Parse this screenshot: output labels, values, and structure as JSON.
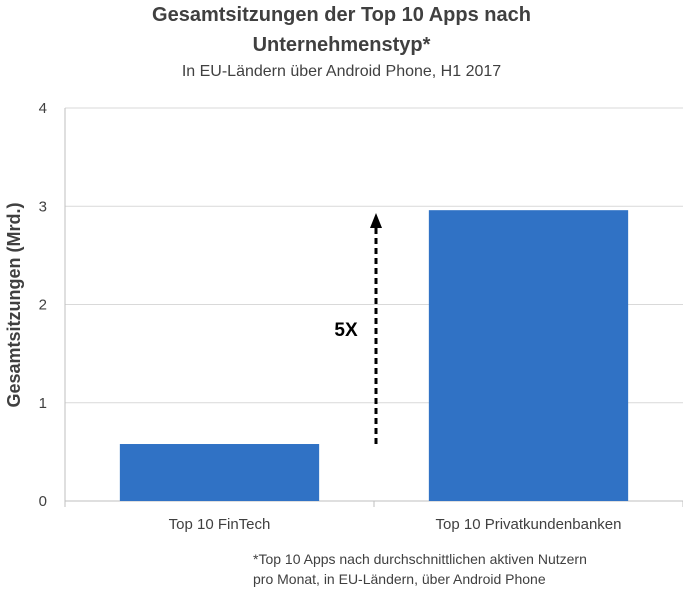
{
  "chart_data": {
    "type": "bar",
    "title_line1": "Gesamtsitzungen der Top 10 Apps nach",
    "title_line2": "Unternehmenstyp*",
    "subtitle": "In EU-Ländern  über Android Phone, H1 2017",
    "ylabel": "Gesamtsitzungen (Mrd.)",
    "xlabel": "",
    "categories": [
      "Top 10 FinTech",
      "Top 10 Privatkundenbanken"
    ],
    "values": [
      0.58,
      2.96
    ],
    "ylim": [
      0,
      4
    ],
    "yticks": [
      0,
      1,
      2,
      3,
      4
    ],
    "grid": true,
    "bar_color": "#3072C5",
    "annotation": "5X",
    "footnote_line1": "*Top 10 Apps nach durchschnittlichen aktiven Nutzern",
    "footnote_line2": "pro Monat, in EU-Ländern, über Android Phone"
  }
}
